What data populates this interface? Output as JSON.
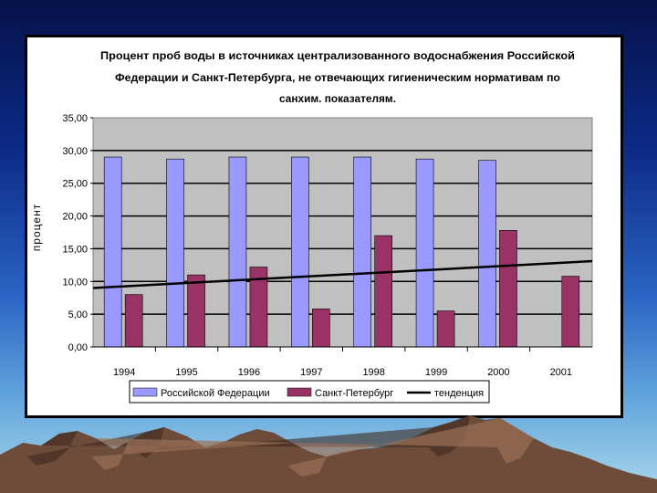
{
  "colors": {
    "russia": "#9999ff",
    "spb": "#993366",
    "trend": "#000000",
    "plot_bg": "#c0c0c0"
  },
  "chart_data": {
    "type": "bar",
    "title_lines": [
      "Процент проб воды в источниках централизованного водоснабжения Российской",
      "Федерации и Санкт-Петербурга, не отвечающих гигиеническим нормативам по",
      "санхим. показателям."
    ],
    "ylabel": "процент",
    "xlabel": "",
    "ylim": [
      0,
      35
    ],
    "y_tick_labels": [
      "0,00",
      "5,00",
      "10,00",
      "15,00",
      "20,00",
      "25,00",
      "30,00",
      "35,00"
    ],
    "y_tick_values": [
      0,
      5,
      10,
      15,
      20,
      25,
      30,
      35
    ],
    "categories": [
      "1994",
      "1995",
      "1996",
      "1997",
      "1998",
      "1999",
      "2000",
      "2001"
    ],
    "series": [
      {
        "name": "Российской Федерации",
        "values": [
          29.0,
          28.7,
          29.0,
          29.0,
          29.0,
          28.7,
          28.5,
          null
        ]
      },
      {
        "name": "Санкт-Петербург",
        "values": [
          8.0,
          11.0,
          12.2,
          5.8,
          17.0,
          5.5,
          17.8,
          10.8
        ]
      }
    ],
    "trend": {
      "name": "тенденция",
      "start": 9.0,
      "end": 13.1
    },
    "grid": true,
    "legend": "bottom"
  }
}
